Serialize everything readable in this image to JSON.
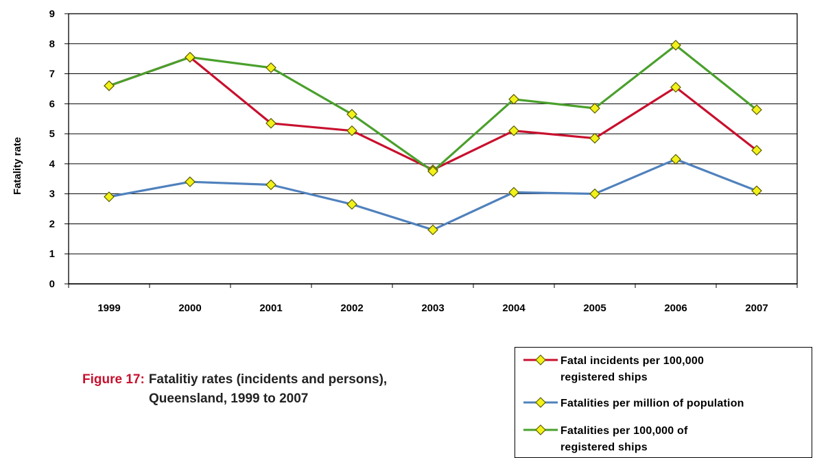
{
  "chart_data": {
    "type": "line",
    "title": "",
    "xlabel": "",
    "ylabel": "Fatality rate",
    "ylim": [
      0,
      9
    ],
    "yticks": [
      "0",
      "1",
      "2",
      "3",
      "4",
      "5",
      "6",
      "7",
      "8",
      "9"
    ],
    "grid": true,
    "categories": [
      "1999",
      "2000",
      "2001",
      "2002",
      "2003",
      "2004",
      "2005",
      "2006",
      "2007"
    ],
    "series": [
      {
        "name": "Fatal incidents per 100,000 registered ships",
        "color": "#c8102e",
        "values": [
          6.6,
          7.55,
          5.35,
          5.1,
          3.8,
          5.1,
          4.85,
          6.55,
          4.45
        ]
      },
      {
        "name": "Fatalities per million of population",
        "color": "#4f81bd",
        "values": [
          2.9,
          3.4,
          3.3,
          2.65,
          1.8,
          3.05,
          3.0,
          4.15,
          3.1
        ]
      },
      {
        "name": "Fatalities per 100,000 of registered ships",
        "color": "#4aa02c",
        "values": [
          6.6,
          7.55,
          7.2,
          5.65,
          3.75,
          6.15,
          5.85,
          7.95,
          5.8
        ]
      }
    ],
    "marker": {
      "shape": "diamond",
      "fill": "#f2f21a",
      "stroke": "#5a5a00"
    }
  },
  "caption": {
    "figure_number": "Figure 17:",
    "line1": "Fatalitiy rates (incidents and persons),",
    "line2": "Queensland, 1999 to 2007"
  },
  "legend": {
    "items": [
      {
        "line1": "Fatal incidents per 100,000",
        "line2": "registered ships"
      },
      {
        "line1": "Fatalities per million of population",
        "line2": ""
      },
      {
        "line1": "Fatalities per 100,000 of",
        "line2": "registered ships"
      }
    ]
  }
}
